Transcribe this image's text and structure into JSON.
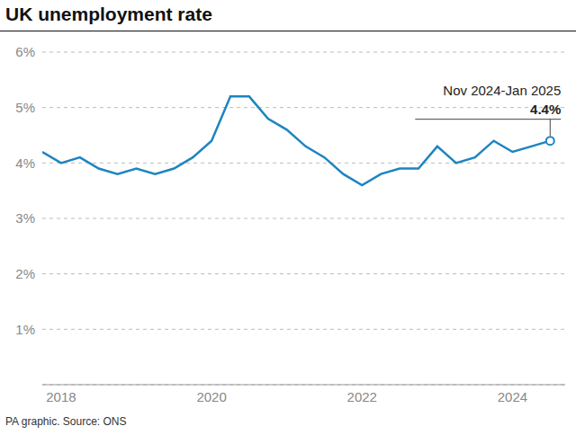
{
  "chart_data": {
    "type": "line",
    "title": "UK unemployment rate",
    "source": "PA graphic. Source: ONS",
    "x": [
      2017.75,
      2018,
      2018.25,
      2018.5,
      2018.75,
      2019,
      2019.25,
      2019.5,
      2019.75,
      2020,
      2020.25,
      2020.5,
      2020.75,
      2021,
      2021.25,
      2021.5,
      2021.75,
      2022,
      2022.25,
      2022.5,
      2022.75,
      2023,
      2023.25,
      2023.5,
      2023.75,
      2024,
      2024.25,
      2024.5
    ],
    "values": [
      4.2,
      4.0,
      4.1,
      3.9,
      3.8,
      3.9,
      3.8,
      3.9,
      4.1,
      4.4,
      5.2,
      5.2,
      4.8,
      4.6,
      4.3,
      4.1,
      3.8,
      3.6,
      3.8,
      3.9,
      3.9,
      4.3,
      4.0,
      4.1,
      4.4,
      4.2,
      4.3,
      4.4
    ],
    "color": "#1d84c0",
    "xlim": [
      2017.75,
      2024.7
    ],
    "xticks": [
      2018,
      2020,
      2022,
      2024
    ],
    "ylim": [
      0,
      6
    ],
    "yticks": [
      {
        "value": 1,
        "label": "1%"
      },
      {
        "value": 2,
        "label": "2%"
      },
      {
        "value": 3,
        "label": "3%"
      },
      {
        "value": 4,
        "label": "4%"
      },
      {
        "value": 5,
        "label": "5%"
      },
      {
        "value": 6,
        "label": "6%"
      }
    ],
    "grid": true,
    "annotation": {
      "text": "Nov 2024-Jan 2025",
      "value_label": "4.4%"
    }
  }
}
